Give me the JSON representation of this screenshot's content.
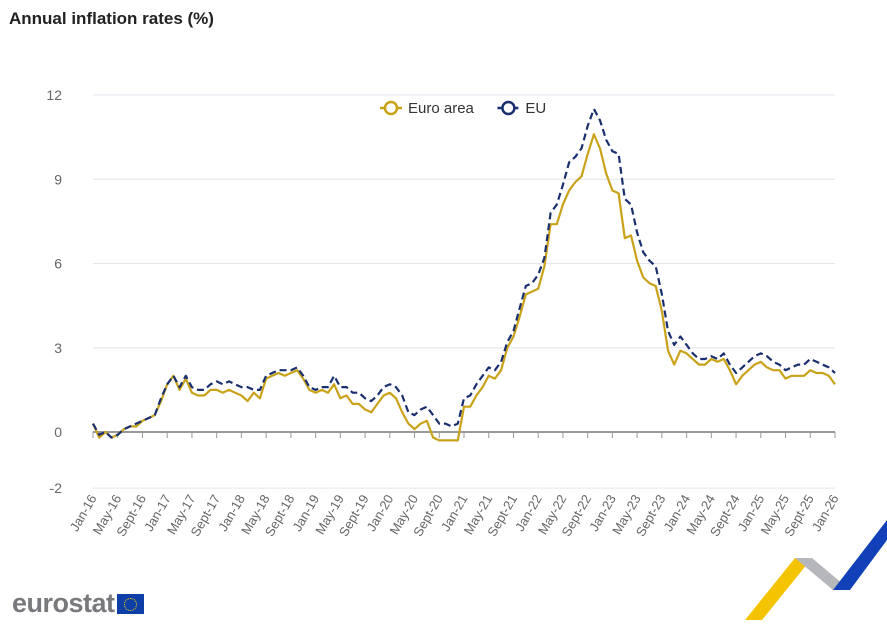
{
  "title": "Annual inflation rates (%)",
  "logo": "eurostat",
  "chart_data": {
    "type": "line",
    "title": "Annual inflation rates (%)",
    "xlabel": "",
    "ylabel": "",
    "ylim": [
      -2,
      12
    ],
    "yticks": [
      -2,
      0,
      3,
      6,
      9,
      12
    ],
    "grid": true,
    "legend_position": "top-center",
    "x_start": "Jan-16",
    "x_end": "Jan-26",
    "xtick_labels": [
      "Jan-16",
      "May-16",
      "Sept-16",
      "Jan-17",
      "May-17",
      "Sept-17",
      "Jan-18",
      "May-18",
      "Sept-18",
      "Jan-19",
      "May-19",
      "Sept-19",
      "Jan-20",
      "May-20",
      "Sept-20",
      "Jan-21",
      "May-21",
      "Sept-21",
      "Jan-22",
      "May-22",
      "Sept-22",
      "Jan-23",
      "May-23",
      "Sept-23",
      "Jan-24",
      "May-24",
      "Sept-24",
      "Jan-25",
      "May-25",
      "Sept-25",
      "Jan-26"
    ],
    "series": [
      {
        "name": "Euro area",
        "color": "#c9a21a",
        "dash": false,
        "values": [
          0.3,
          -0.2,
          0.0,
          -0.2,
          -0.1,
          0.1,
          0.2,
          0.2,
          0.4,
          0.5,
          0.6,
          1.1,
          1.7,
          2.0,
          1.5,
          1.9,
          1.4,
          1.3,
          1.3,
          1.5,
          1.5,
          1.4,
          1.5,
          1.4,
          1.3,
          1.1,
          1.4,
          1.2,
          1.9,
          2.0,
          2.1,
          2.0,
          2.1,
          2.2,
          1.9,
          1.5,
          1.4,
          1.5,
          1.4,
          1.7,
          1.2,
          1.3,
          1.0,
          1.0,
          0.8,
          0.7,
          1.0,
          1.3,
          1.4,
          1.2,
          0.7,
          0.3,
          0.1,
          0.3,
          0.4,
          -0.2,
          -0.3,
          -0.3,
          -0.3,
          -0.3,
          0.9,
          0.9,
          1.3,
          1.6,
          2.0,
          1.9,
          2.2,
          3.0,
          3.4,
          4.1,
          4.9,
          5.0,
          5.1,
          5.9,
          7.4,
          7.4,
          8.1,
          8.6,
          8.9,
          9.1,
          9.9,
          10.6,
          10.1,
          9.2,
          8.6,
          8.5,
          6.9,
          7.0,
          6.1,
          5.5,
          5.3,
          5.2,
          4.3,
          2.9,
          2.4,
          2.9,
          2.8,
          2.6,
          2.4,
          2.4,
          2.6,
          2.5,
          2.6,
          2.2,
          1.7,
          2.0,
          2.2,
          2.4,
          2.5,
          2.3,
          2.2,
          2.2,
          1.9,
          2.0,
          2.0,
          2.0,
          2.2,
          2.1,
          2.1,
          2.0,
          1.7
        ]
      },
      {
        "name": "EU",
        "color": "#1a2f6e",
        "dash": true,
        "values": [
          0.3,
          -0.1,
          0.0,
          -0.2,
          -0.1,
          0.1,
          0.2,
          0.3,
          0.4,
          0.5,
          0.6,
          1.2,
          1.7,
          2.0,
          1.6,
          2.0,
          1.6,
          1.5,
          1.5,
          1.7,
          1.8,
          1.7,
          1.8,
          1.7,
          1.6,
          1.6,
          1.5,
          1.5,
          2.0,
          2.1,
          2.2,
          2.2,
          2.2,
          2.3,
          2.0,
          1.6,
          1.5,
          1.6,
          1.6,
          2.0,
          1.6,
          1.6,
          1.4,
          1.4,
          1.2,
          1.1,
          1.3,
          1.6,
          1.7,
          1.6,
          1.3,
          0.7,
          0.6,
          0.8,
          0.9,
          0.6,
          0.3,
          0.3,
          0.2,
          0.3,
          1.2,
          1.3,
          1.7,
          2.0,
          2.3,
          2.2,
          2.5,
          3.2,
          3.6,
          4.4,
          5.2,
          5.3,
          5.6,
          6.2,
          7.8,
          8.1,
          8.8,
          9.6,
          9.8,
          10.1,
          10.9,
          11.5,
          11.1,
          10.4,
          10.0,
          9.9,
          8.3,
          8.1,
          7.1,
          6.4,
          6.1,
          5.9,
          4.9,
          3.6,
          3.1,
          3.4,
          3.1,
          2.8,
          2.6,
          2.6,
          2.7,
          2.6,
          2.8,
          2.4,
          2.1,
          2.3,
          2.5,
          2.7,
          2.8,
          2.7,
          2.5,
          2.4,
          2.2,
          2.3,
          2.4,
          2.4,
          2.6,
          2.5,
          2.4,
          2.3,
          2.1
        ]
      }
    ]
  }
}
